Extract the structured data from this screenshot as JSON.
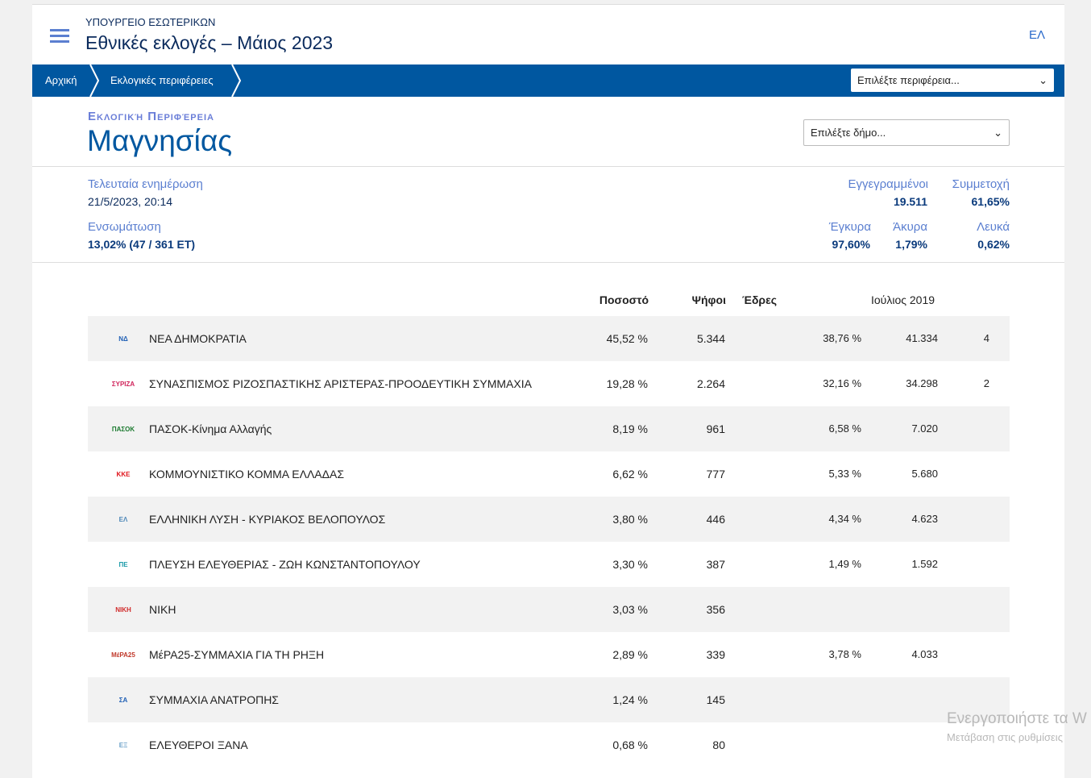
{
  "header": {
    "ministry": "ΥΠΟΥΡΓΕΙΟ ΕΣΩΤΕΡΙΚΩΝ",
    "title": "Εθνικές εκλογές – Μάιος 2023",
    "lang": "ΕΛ"
  },
  "nav": {
    "crumbs": [
      "Αρχική",
      "Εκλογικές περιφέρειες"
    ],
    "region_select": "Επιλέξτε περιφέρεια..."
  },
  "region": {
    "subtitle": "Εκλογική Περιφέρεια",
    "name": "Μαγνησίας",
    "municipality_select": "Επιλέξτε δήμο..."
  },
  "stats": {
    "last_update_label": "Τελευταία ενημέρωση",
    "last_update": "21/5/2023, 20:14",
    "integration_label": "Ενσωμάτωση",
    "integration": "13,02% (47 / 361 ΕΤ)",
    "registered_label": "Εγγεγραμμένοι",
    "registered": "19.511",
    "turnout_label": "Συμμετοχή",
    "turnout": "61,65%",
    "valid_label": "Έγκυρα",
    "valid": "97,60%",
    "invalid_label": "Άκυρα",
    "invalid": "1,79%",
    "blank_label": "Λευκά",
    "blank": "0,62%"
  },
  "table": {
    "headers": {
      "pct": "Ποσοστό",
      "votes": "Ψήφοι",
      "seats": "Έδρες",
      "prev": "Ιούλιος 2019"
    },
    "rows": [
      {
        "logo": "ΝΔ",
        "color": "#1f5fb5",
        "name": "ΝΕΑ ΔΗΜΟΚΡΑΤΙΑ",
        "pct": "45,52 %",
        "votes": "5.344",
        "seats": "",
        "prev_pct": "38,76 %",
        "prev_votes": "41.334",
        "prev_seats": "4"
      },
      {
        "logo": "ΣΥΡΙΖΑ",
        "color": "#d0245b",
        "name": "ΣΥΝΑΣΠΙΣΜΟΣ ΡΙΖΟΣΠΑΣΤΙΚΗΣ ΑΡΙΣΤΕΡΑΣ-ΠΡΟΟΔΕΥΤΙΚΗ ΣΥΜΜΑΧΙΑ",
        "pct": "19,28 %",
        "votes": "2.264",
        "seats": "",
        "prev_pct": "32,16 %",
        "prev_votes": "34.298",
        "prev_seats": "2"
      },
      {
        "logo": "ΠΑΣΟΚ",
        "color": "#1b7a2f",
        "name": "ΠΑΣΟΚ-Κίνημα Αλλαγής",
        "pct": "8,19 %",
        "votes": "961",
        "seats": "",
        "prev_pct": "6,58 %",
        "prev_votes": "7.020",
        "prev_seats": ""
      },
      {
        "logo": "ΚΚΕ",
        "color": "#e0141b",
        "name": "ΚΟΜΜΟΥΝΙΣΤΙΚΟ ΚΟΜΜΑ ΕΛΛΑΔΑΣ",
        "pct": "6,62 %",
        "votes": "777",
        "seats": "",
        "prev_pct": "5,33 %",
        "prev_votes": "5.680",
        "prev_seats": ""
      },
      {
        "logo": "ΕΛ",
        "color": "#4b86b8",
        "name": "ΕΛΛΗΝΙΚΗ ΛΥΣΗ - ΚΥΡΙΑΚΟΣ ΒΕΛΟΠΟΥΛΟΣ",
        "pct": "3,80 %",
        "votes": "446",
        "seats": "",
        "prev_pct": "4,34 %",
        "prev_votes": "4.623",
        "prev_seats": ""
      },
      {
        "logo": "ΠΕ",
        "color": "#1a9aa8",
        "name": "ΠΛΕΥΣΗ ΕΛΕΥΘΕΡΙΑΣ - ΖΩΗ ΚΩΝΣΤΑΝΤΟΠΟΥΛΟΥ",
        "pct": "3,30 %",
        "votes": "387",
        "seats": "",
        "prev_pct": "1,49 %",
        "prev_votes": "1.592",
        "prev_seats": ""
      },
      {
        "logo": "ΝΙΚΗ",
        "color": "#d02a2a",
        "name": "ΝΙΚΗ",
        "pct": "3,03 %",
        "votes": "356",
        "seats": "",
        "prev_pct": "",
        "prev_votes": "",
        "prev_seats": ""
      },
      {
        "logo": "ΜέΡΑ25",
        "color": "#c0392b",
        "name": "ΜέΡΑ25-ΣΥΜΜΑΧΙΑ ΓΙΑ ΤΗ ΡΗΞΗ",
        "pct": "2,89 %",
        "votes": "339",
        "seats": "",
        "prev_pct": "3,78 %",
        "prev_votes": "4.033",
        "prev_seats": ""
      },
      {
        "logo": "ΣΑ",
        "color": "#1f5fb5",
        "name": "ΣΥΜΜΑΧΙΑ ΑΝΑΤΡΟΠΗΣ",
        "pct": "1,24 %",
        "votes": "145",
        "seats": "",
        "prev_pct": "",
        "prev_votes": "",
        "prev_seats": ""
      },
      {
        "logo": "ΕΞ",
        "color": "#6aa0c8",
        "name": "ΕΛΕΥΘΕΡΟΙ ΞΑΝΑ",
        "pct": "0,68 %",
        "votes": "80",
        "seats": "",
        "prev_pct": "",
        "prev_votes": "",
        "prev_seats": ""
      }
    ]
  },
  "watermark": {
    "line1": "Ενεργοποιήστε τα W",
    "line2": "Μετάβαση στις ρυθμίσεις"
  }
}
